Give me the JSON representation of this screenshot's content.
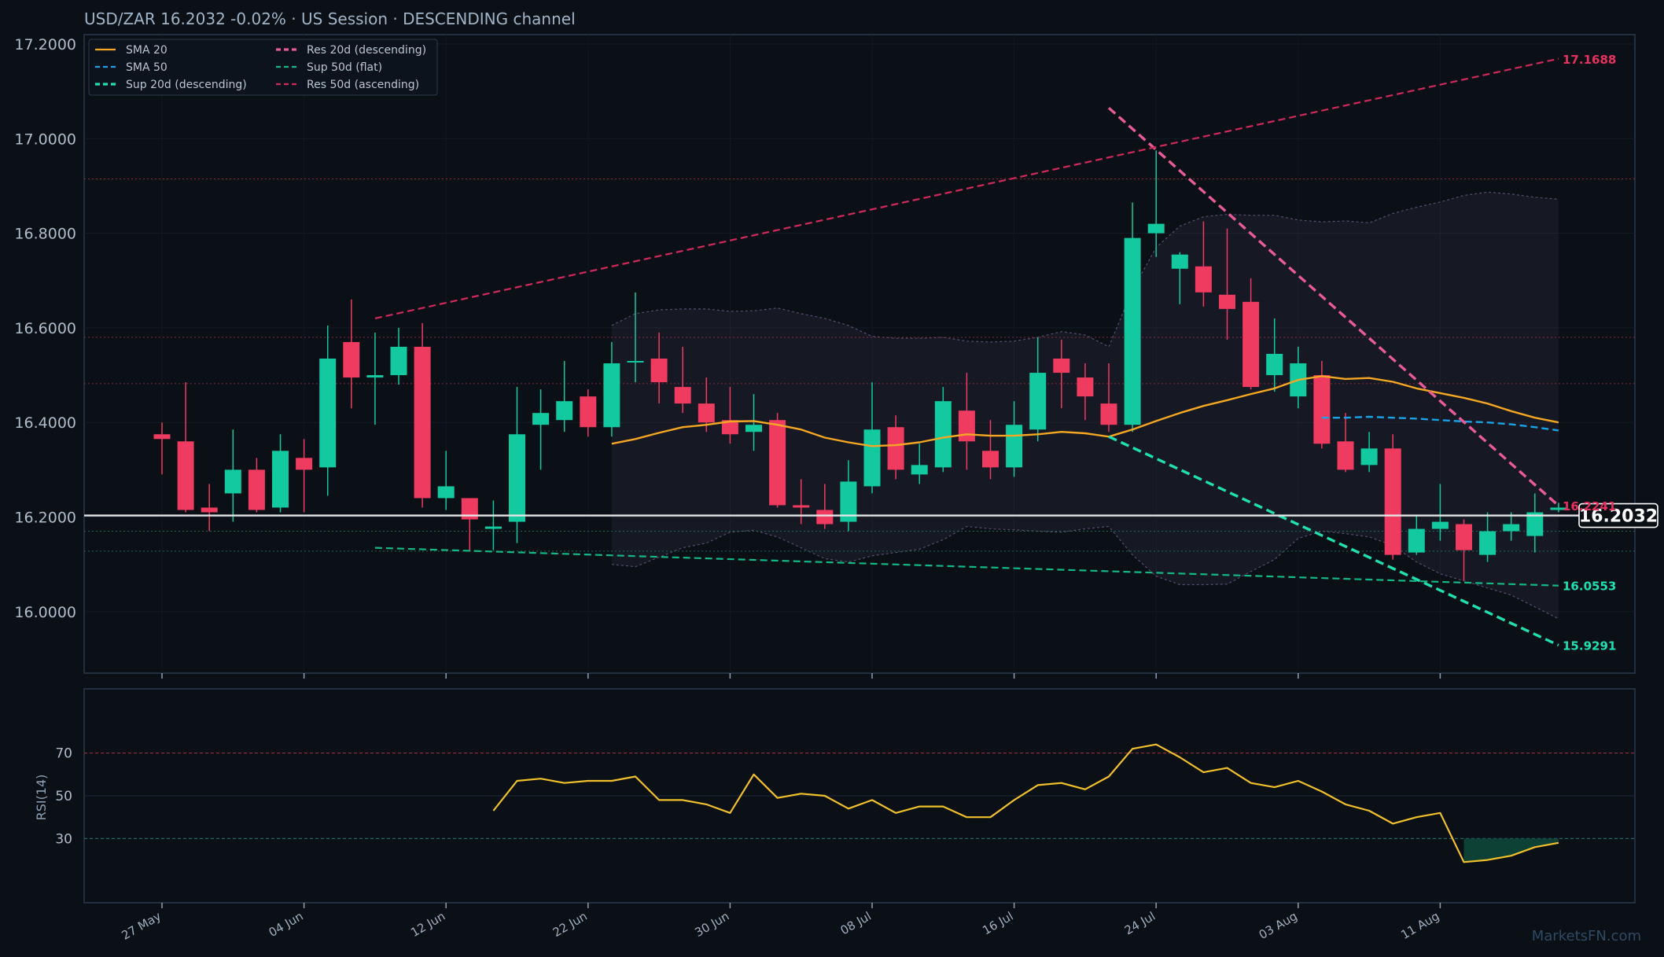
{
  "header": {
    "title": "USD/ZAR   16.2032   -0.02%  ·  US Session  ·  DESCENDING channel"
  },
  "watermark": "MarketsFN.com",
  "colors": {
    "background": "#0b0f16",
    "panel_border": "#2a3a4e",
    "bull": "#12c9a0",
    "bear": "#ef3b5f",
    "sma20": "#f5a623",
    "sma50": "#1aa3e8",
    "sup20": "#1ee0b0",
    "res20": "#e85a9a",
    "sup50": "#14b884",
    "res50": "#d02a5a",
    "rsi": "#f2c02a",
    "price_line": "#e6e6e6"
  },
  "legend": {
    "items": [
      {
        "label": "SMA 20",
        "color": "#f5a623",
        "style": "solid"
      },
      {
        "label": "SMA 50",
        "color": "#1aa3e8",
        "style": "dashed"
      },
      {
        "label": "Sup 20d (descending)",
        "color": "#1ee0b0",
        "style": "dashed-bold"
      },
      {
        "label": "Res 20d (descending)",
        "color": "#e85a9a",
        "style": "dashed-bold"
      },
      {
        "label": "Sup 50d (flat)",
        "color": "#14b884",
        "style": "dashed"
      },
      {
        "label": "Res 50d (ascending)",
        "color": "#d02a5a",
        "style": "dashed"
      }
    ]
  },
  "chart_data": [
    {
      "type": "candlestick",
      "title": "USD/ZAR   16.2032   -0.02%  ·  US Session  ·  DESCENDING channel",
      "ylim": [
        15.87,
        17.22
      ],
      "y_ticks": [
        "17.2000",
        "17.0000",
        "16.8000",
        "16.6000",
        "16.4000",
        "16.2000",
        "16.0000"
      ],
      "y_tick_values": [
        17.2,
        17.0,
        16.8,
        16.6,
        16.4,
        16.2,
        16.0
      ],
      "x_ticks": [
        "27 May",
        "04 Jun",
        "12 Jun",
        "22 Jun",
        "30 Jun",
        "08 Jul",
        "16 Jul",
        "24 Jul",
        "03 Aug",
        "11 Aug"
      ],
      "x_tick_index": [
        0,
        6,
        12,
        18,
        24,
        30,
        36,
        42,
        48,
        54
      ],
      "candles": [
        {
          "o": 16.375,
          "h": 16.4,
          "l": 16.29,
          "c": 16.365
        },
        {
          "o": 16.36,
          "h": 16.485,
          "l": 16.21,
          "c": 16.215
        },
        {
          "o": 16.22,
          "h": 16.27,
          "l": 16.17,
          "c": 16.21
        },
        {
          "o": 16.25,
          "h": 16.385,
          "l": 16.19,
          "c": 16.3
        },
        {
          "o": 16.3,
          "h": 16.325,
          "l": 16.21,
          "c": 16.215
        },
        {
          "o": 16.22,
          "h": 16.375,
          "l": 16.21,
          "c": 16.34
        },
        {
          "o": 16.325,
          "h": 16.365,
          "l": 16.21,
          "c": 16.3
        },
        {
          "o": 16.305,
          "h": 16.605,
          "l": 16.245,
          "c": 16.535
        },
        {
          "o": 16.57,
          "h": 16.66,
          "l": 16.43,
          "c": 16.495
        },
        {
          "o": 16.495,
          "h": 16.59,
          "l": 16.395,
          "c": 16.5
        },
        {
          "o": 16.5,
          "h": 16.6,
          "l": 16.48,
          "c": 16.56
        },
        {
          "o": 16.56,
          "h": 16.61,
          "l": 16.22,
          "c": 16.24
        },
        {
          "o": 16.24,
          "h": 16.34,
          "l": 16.215,
          "c": 16.265
        },
        {
          "o": 16.24,
          "h": 16.24,
          "l": 16.13,
          "c": 16.195
        },
        {
          "o": 16.175,
          "h": 16.235,
          "l": 16.13,
          "c": 16.18
        },
        {
          "o": 16.19,
          "h": 16.475,
          "l": 16.145,
          "c": 16.375
        },
        {
          "o": 16.395,
          "h": 16.47,
          "l": 16.3,
          "c": 16.42
        },
        {
          "o": 16.405,
          "h": 16.53,
          "l": 16.38,
          "c": 16.445
        },
        {
          "o": 16.455,
          "h": 16.47,
          "l": 16.37,
          "c": 16.39
        },
        {
          "o": 16.39,
          "h": 16.57,
          "l": 16.37,
          "c": 16.525
        },
        {
          "o": 16.53,
          "h": 16.675,
          "l": 16.485,
          "c": 16.53
        },
        {
          "o": 16.535,
          "h": 16.59,
          "l": 16.44,
          "c": 16.485
        },
        {
          "o": 16.475,
          "h": 16.56,
          "l": 16.42,
          "c": 16.44
        },
        {
          "o": 16.44,
          "h": 16.495,
          "l": 16.38,
          "c": 16.4
        },
        {
          "o": 16.405,
          "h": 16.475,
          "l": 16.355,
          "c": 16.375
        },
        {
          "o": 16.38,
          "h": 16.46,
          "l": 16.34,
          "c": 16.395
        },
        {
          "o": 16.405,
          "h": 16.42,
          "l": 16.22,
          "c": 16.225
        },
        {
          "o": 16.225,
          "h": 16.28,
          "l": 16.185,
          "c": 16.22
        },
        {
          "o": 16.215,
          "h": 16.27,
          "l": 16.175,
          "c": 16.185
        },
        {
          "o": 16.19,
          "h": 16.32,
          "l": 16.17,
          "c": 16.275
        },
        {
          "o": 16.265,
          "h": 16.485,
          "l": 16.25,
          "c": 16.385
        },
        {
          "o": 16.39,
          "h": 16.415,
          "l": 16.28,
          "c": 16.3
        },
        {
          "o": 16.29,
          "h": 16.355,
          "l": 16.27,
          "c": 16.31
        },
        {
          "o": 16.305,
          "h": 16.475,
          "l": 16.295,
          "c": 16.445
        },
        {
          "o": 16.425,
          "h": 16.505,
          "l": 16.3,
          "c": 16.36
        },
        {
          "o": 16.34,
          "h": 16.405,
          "l": 16.28,
          "c": 16.305
        },
        {
          "o": 16.305,
          "h": 16.445,
          "l": 16.285,
          "c": 16.395
        },
        {
          "o": 16.385,
          "h": 16.58,
          "l": 16.36,
          "c": 16.505
        },
        {
          "o": 16.535,
          "h": 16.575,
          "l": 16.43,
          "c": 16.505
        },
        {
          "o": 16.495,
          "h": 16.525,
          "l": 16.405,
          "c": 16.455
        },
        {
          "o": 16.44,
          "h": 16.525,
          "l": 16.38,
          "c": 16.395
        },
        {
          "o": 16.395,
          "h": 16.865,
          "l": 16.38,
          "c": 16.79
        },
        {
          "o": 16.8,
          "h": 16.975,
          "l": 16.75,
          "c": 16.82
        },
        {
          "o": 16.725,
          "h": 16.76,
          "l": 16.65,
          "c": 16.755
        },
        {
          "o": 16.73,
          "h": 16.825,
          "l": 16.645,
          "c": 16.675
        },
        {
          "o": 16.67,
          "h": 16.81,
          "l": 16.575,
          "c": 16.64
        },
        {
          "o": 16.655,
          "h": 16.705,
          "l": 16.47,
          "c": 16.475
        },
        {
          "o": 16.5,
          "h": 16.62,
          "l": 16.465,
          "c": 16.545
        },
        {
          "o": 16.455,
          "h": 16.56,
          "l": 16.43,
          "c": 16.525
        },
        {
          "o": 16.5,
          "h": 16.53,
          "l": 16.345,
          "c": 16.355
        },
        {
          "o": 16.36,
          "h": 16.42,
          "l": 16.295,
          "c": 16.3
        },
        {
          "o": 16.31,
          "h": 16.38,
          "l": 16.295,
          "c": 16.345
        },
        {
          "o": 16.345,
          "h": 16.375,
          "l": 16.11,
          "c": 16.12
        },
        {
          "o": 16.125,
          "h": 16.205,
          "l": 16.12,
          "c": 16.175
        },
        {
          "o": 16.175,
          "h": 16.27,
          "l": 16.15,
          "c": 16.19
        },
        {
          "o": 16.185,
          "h": 16.195,
          "l": 16.065,
          "c": 16.13
        },
        {
          "o": 16.12,
          "h": 16.21,
          "l": 16.105,
          "c": 16.17
        },
        {
          "o": 16.17,
          "h": 16.21,
          "l": 16.15,
          "c": 16.185
        },
        {
          "o": 16.16,
          "h": 16.25,
          "l": 16.125,
          "c": 16.21
        },
        {
          "o": 16.215,
          "h": 16.23,
          "l": 16.21,
          "c": 16.22
        }
      ],
      "sma20": {
        "start_index": 19,
        "values": [
          16.355,
          16.365,
          16.378,
          16.39,
          16.395,
          16.402,
          16.403,
          16.395,
          16.385,
          16.368,
          16.358,
          16.35,
          16.352,
          16.358,
          16.368,
          16.375,
          16.372,
          16.372,
          16.375,
          16.38,
          16.377,
          16.37,
          16.385,
          16.403,
          16.42,
          16.435,
          16.447,
          16.46,
          16.472,
          16.49,
          16.498,
          16.492,
          16.494,
          16.486,
          16.472,
          16.462,
          16.452,
          16.44,
          16.424,
          16.41,
          16.4
        ]
      },
      "sma50": {
        "start_index": 49,
        "values": [
          16.41,
          16.41,
          16.412,
          16.41,
          16.408,
          16.405,
          16.402,
          16.4,
          16.396,
          16.39,
          16.383
        ]
      },
      "bb_upper": {
        "start_index": 19,
        "values": [
          16.605,
          16.63,
          16.638,
          16.64,
          16.64,
          16.635,
          16.636,
          16.642,
          16.63,
          16.62,
          16.605,
          16.582,
          16.578,
          16.578,
          16.58,
          16.572,
          16.57,
          16.572,
          16.58,
          16.592,
          16.585,
          16.56,
          16.68,
          16.77,
          16.815,
          16.835,
          16.84,
          16.838,
          16.838,
          16.828,
          16.824,
          16.826,
          16.822,
          16.842,
          16.855,
          16.866,
          16.88,
          16.887,
          16.883,
          16.876,
          16.872
        ]
      },
      "bb_lower": {
        "start_index": 19,
        "values": [
          16.1,
          16.095,
          16.115,
          16.135,
          16.145,
          16.168,
          16.172,
          16.158,
          16.135,
          16.112,
          16.105,
          16.118,
          16.125,
          16.132,
          16.152,
          16.18,
          16.175,
          16.173,
          16.17,
          16.168,
          16.175,
          16.18,
          16.12,
          16.075,
          16.057,
          16.057,
          16.058,
          16.085,
          16.11,
          16.155,
          16.17,
          16.165,
          16.158,
          16.14,
          16.105,
          16.08,
          16.065,
          16.05,
          16.035,
          16.01,
          15.985
        ]
      },
      "trendlines": [
        {
          "name": "Sup 20d (descending)",
          "from": [
            40,
            16.37
          ],
          "to": [
            59,
            15.929
          ]
        },
        {
          "name": "Res 20d (descending)",
          "from": [
            40,
            17.065
          ],
          "to": [
            59,
            16.224
          ]
        },
        {
          "name": "Sup 50d (flat)",
          "from": [
            9,
            16.135
          ],
          "to": [
            59,
            16.055
          ]
        },
        {
          "name": "Res 50d (ascending)",
          "from": [
            9,
            16.62
          ],
          "to": [
            59,
            17.169
          ]
        }
      ],
      "horizontal_levels": [
        {
          "value": 16.915,
          "color": "#8a2a3a"
        },
        {
          "value": 16.58,
          "color": "#8a2a3a"
        },
        {
          "value": 16.482,
          "color": "#8a2a3a"
        },
        {
          "value": 16.17,
          "color": "#1b6b55"
        },
        {
          "value": 16.128,
          "color": "#1b6b55"
        }
      ],
      "last_price": 16.2032,
      "last_price_label": "16.2032",
      "level_labels": [
        {
          "text": "17.1688",
          "value": 17.1688,
          "color": "#e8305e"
        },
        {
          "text": "16.2241",
          "value": 16.2241,
          "color": "#e8305e"
        },
        {
          "text": "16.0553",
          "value": 16.0553,
          "color": "#1ee0b0"
        },
        {
          "text": "15.9291",
          "value": 15.9291,
          "color": "#1ee0b0"
        }
      ]
    },
    {
      "type": "line",
      "ylabel": "RSI(14)",
      "ylim": [
        0,
        100
      ],
      "y_ticks": [
        "70",
        "50",
        "30"
      ],
      "y_tick_values": [
        70,
        50,
        30
      ],
      "overbought": 70,
      "oversold": 30,
      "start_index": 14,
      "values": [
        43,
        57,
        58,
        56,
        57,
        57,
        59,
        48,
        48,
        46,
        42,
        60,
        49,
        51,
        50,
        44,
        48,
        42,
        45,
        45,
        40,
        40,
        48,
        55,
        56,
        53,
        59,
        72,
        74,
        68,
        61,
        63,
        56,
        54,
        57,
        52,
        46,
        43,
        37,
        40,
        42,
        19,
        20,
        22,
        26,
        28
      ]
    }
  ]
}
